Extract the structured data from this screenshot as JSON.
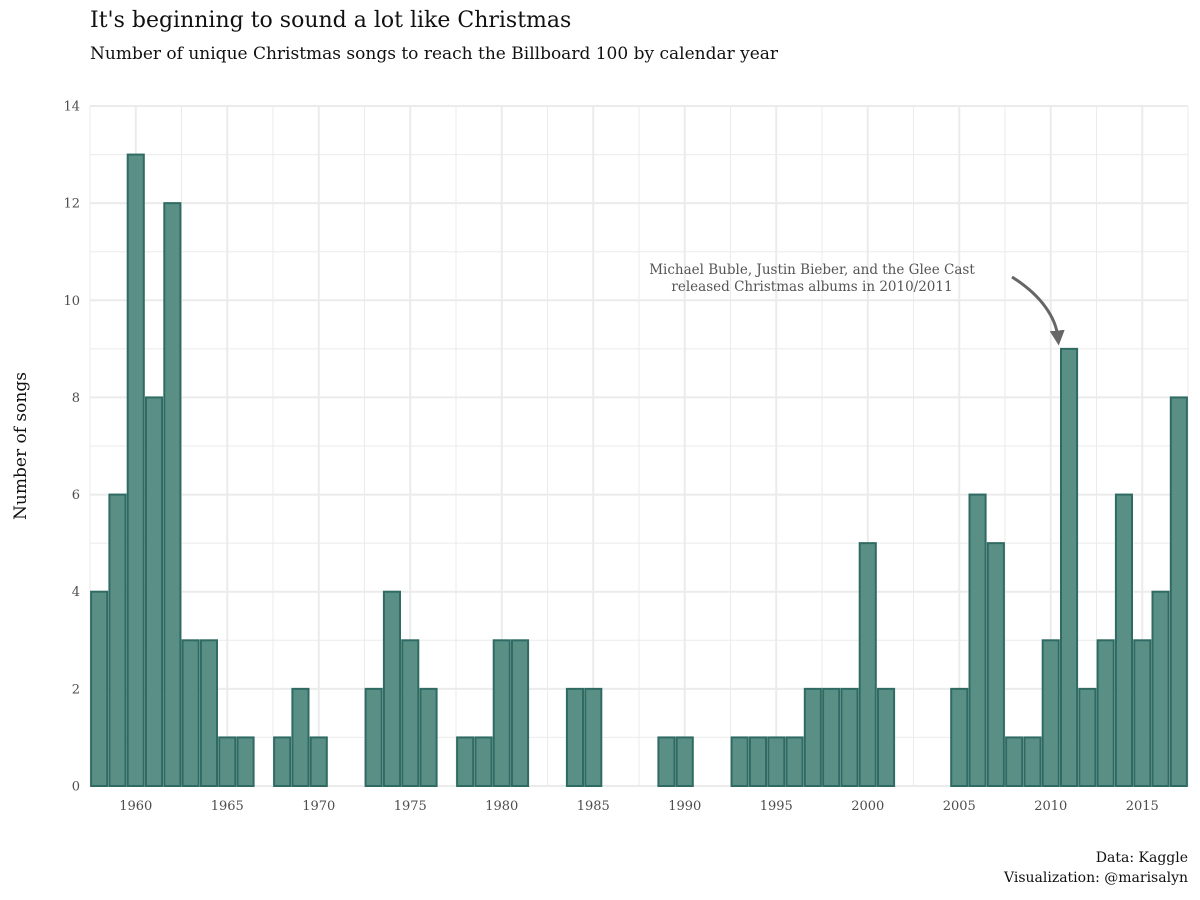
{
  "header": {
    "title": "It's beginning to sound a lot like Christmas",
    "subtitle": "Number of unique Christmas songs to reach the Billboard 100 by calendar year"
  },
  "caption": {
    "line1": "Data: Kaggle",
    "line2": "Visualization: @marisalyn"
  },
  "chart_data": {
    "type": "bar",
    "title": "It's beginning to sound a lot like Christmas",
    "subtitle": "Number of unique Christmas songs to reach the Billboard 100 by calendar year",
    "xlabel": "",
    "ylabel": "Number of songs",
    "x": [
      1958,
      1959,
      1960,
      1961,
      1962,
      1963,
      1964,
      1965,
      1966,
      1967,
      1968,
      1969,
      1970,
      1971,
      1972,
      1973,
      1974,
      1975,
      1976,
      1977,
      1978,
      1979,
      1980,
      1981,
      1982,
      1983,
      1984,
      1985,
      1986,
      1987,
      1988,
      1989,
      1990,
      1991,
      1992,
      1993,
      1994,
      1995,
      1996,
      1997,
      1998,
      1999,
      2000,
      2001,
      2002,
      2003,
      2004,
      2005,
      2006,
      2007,
      2008,
      2009,
      2010,
      2011,
      2012,
      2013,
      2014,
      2015,
      2016,
      2017
    ],
    "values": [
      4,
      6,
      13,
      8,
      12,
      3,
      3,
      1,
      1,
      0,
      1,
      2,
      1,
      0,
      0,
      2,
      4,
      3,
      2,
      0,
      1,
      1,
      3,
      3,
      0,
      0,
      2,
      2,
      0,
      0,
      0,
      1,
      1,
      0,
      0,
      1,
      1,
      1,
      1,
      2,
      2,
      2,
      5,
      2,
      0,
      0,
      0,
      2,
      6,
      5,
      1,
      1,
      3,
      9,
      2,
      3,
      6,
      3,
      4,
      8
    ],
    "xlim": [
      1957.5,
      2017.5
    ],
    "ylim": [
      0,
      14
    ],
    "x_ticks": [
      1960,
      1965,
      1970,
      1975,
      1980,
      1985,
      1990,
      1995,
      2000,
      2005,
      2010,
      2015
    ],
    "y_ticks": [
      0,
      2,
      4,
      6,
      8,
      10,
      12,
      14
    ],
    "grid": true,
    "legend": "none",
    "colors": {
      "bar_fill": "#5a8f86",
      "bar_stroke": "#2f6b63",
      "grid": "#ebebeb",
      "annotation": "#555555",
      "arrow": "#666666"
    },
    "annotation": {
      "line1": "Michael Buble, Justin Bieber, and the Glee Cast",
      "line2": "released Christmas albums in 2010/2011",
      "x": 2011,
      "y": 9
    }
  }
}
